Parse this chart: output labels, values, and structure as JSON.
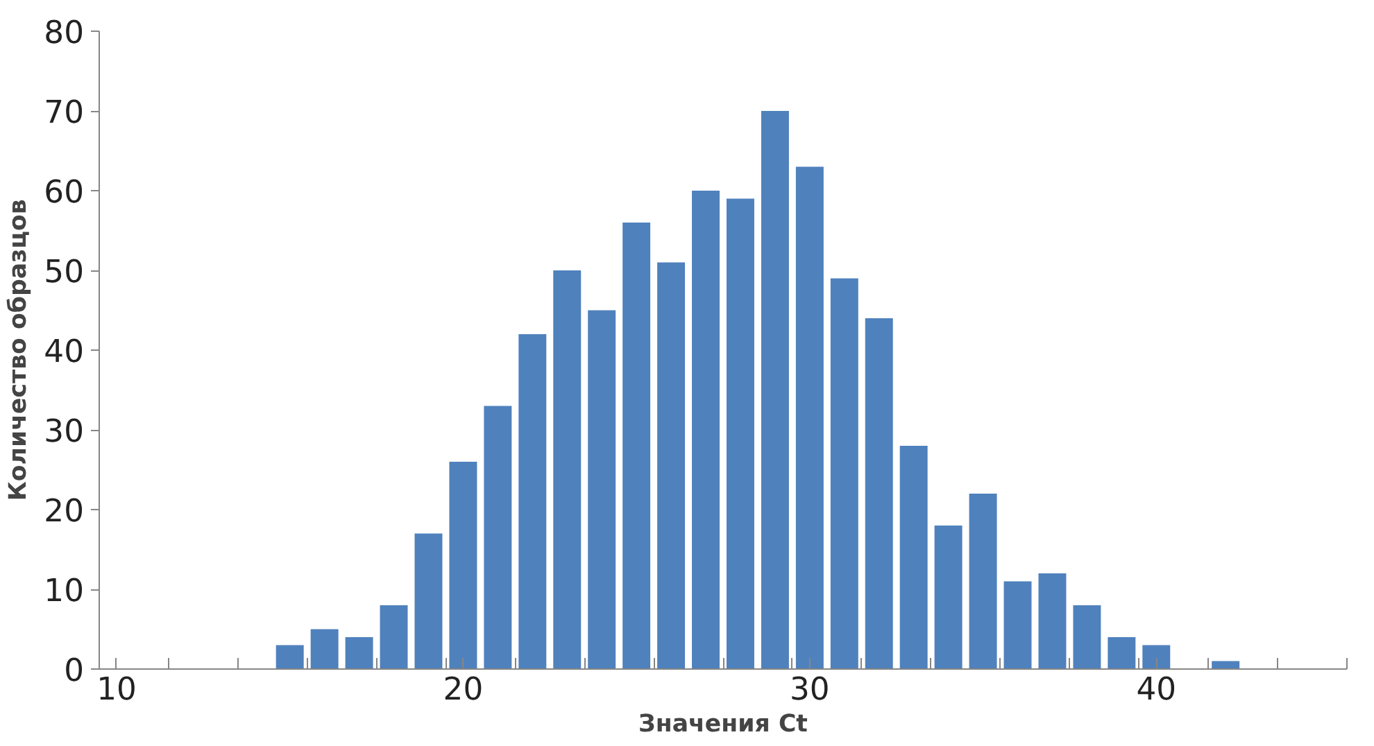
{
  "chart_data": {
    "type": "histogram",
    "xlabel": "Значения Ct",
    "ylabel": "Количество образцов",
    "bins": [
      14.5,
      15.5,
      16.5,
      17.5,
      18.5,
      19.5,
      20.5,
      21.5,
      22.5,
      23.5,
      24.5,
      25.5,
      26.5,
      27.5,
      28.5,
      29.5,
      30.5,
      31.5,
      32.5,
      33.5,
      34.5,
      35.5,
      36.5,
      37.5,
      38.5,
      39.5,
      40.5,
      41.5,
      42.5
    ],
    "values": [
      3,
      5,
      4,
      8,
      17,
      26,
      33,
      42,
      50,
      45,
      56,
      51,
      60,
      59,
      70,
      63,
      49,
      44,
      28,
      18,
      22,
      11,
      12,
      8,
      4,
      3,
      0,
      1
    ],
    "color": "#4f81bd",
    "xlim": [
      9.5,
      45.5
    ],
    "xticks": [
      {
        "value": 9.5,
        "label": null
      },
      10,
      {
        "value": 11.5,
        "label": null
      },
      {
        "value": 13.5,
        "label": null
      },
      {
        "value": 15.5,
        "label": null
      },
      {
        "value": 17.5,
        "label": null
      },
      {
        "value": 19.5,
        "label": null
      },
      20,
      {
        "value": 21.5,
        "label": null
      },
      {
        "value": 23.5,
        "label": null
      },
      {
        "value": 25.5,
        "label": null
      },
      {
        "value": 27.5,
        "label": null
      },
      {
        "value": 29.5,
        "label": null
      },
      30,
      {
        "value": 31.5,
        "label": null
      },
      {
        "value": 33.5,
        "label": null
      },
      {
        "value": 35.5,
        "label": null
      },
      {
        "value": 37.5,
        "label": null
      },
      {
        "value": 39.5,
        "label": null
      },
      40,
      {
        "value": 41.5,
        "label": null
      },
      {
        "value": 43.5,
        "label": null
      },
      {
        "value": 45.5,
        "label": null
      }
    ],
    "ylim": [
      0,
      80
    ],
    "yticks": [
      0,
      10,
      20,
      30,
      40,
      50,
      60,
      70,
      80
    ],
    "grid": false
  }
}
